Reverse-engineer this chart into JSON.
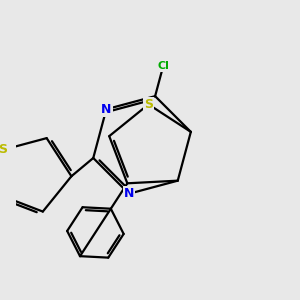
{
  "bg_color": "#e8e8e8",
  "bond_color": "#000000",
  "N_color": "#0000ee",
  "S_color": "#bbbb00",
  "Cl_color": "#00aa00",
  "line_width": 1.6,
  "dbo": 0.055,
  "xlim": [
    -2.8,
    2.8
  ],
  "ylim": [
    -2.8,
    2.8
  ]
}
